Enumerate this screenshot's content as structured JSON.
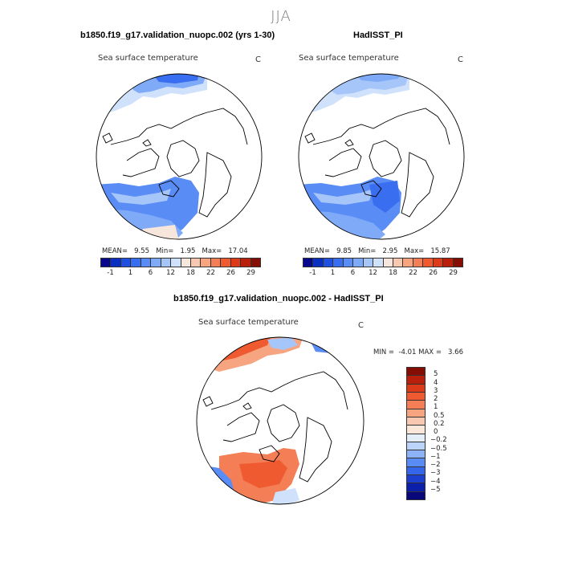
{
  "season": "JJA",
  "panels": [
    {
      "title": "b1850.f19_g17.validation_nuopc.002 (yrs 1-30)",
      "subtitle": "Sea surface temperature",
      "units": "C",
      "mean_label": "MEAN=",
      "mean": "9.55",
      "min_label": "Min=",
      "min": "1.95",
      "max_label": "Max=",
      "max": "17.04"
    },
    {
      "title": "HadISST_PI",
      "subtitle": "Sea surface temperature",
      "units": "C",
      "mean_label": "MEAN=",
      "mean": "9.85",
      "min_label": "Min=",
      "min": "2.95",
      "max_label": "Max=",
      "max": "15.87"
    }
  ],
  "abs_colorbar": {
    "tick_labels": [
      "-1",
      "1",
      "6",
      "12",
      "18",
      "22",
      "26",
      "29"
    ],
    "colors": [
      "#08088c",
      "#0b2fbe",
      "#1f50e0",
      "#3a6ef0",
      "#5a8cf5",
      "#7faaf8",
      "#a6c6fa",
      "#cfe1fb",
      "#f6e6dc",
      "#f9c8b0",
      "#f7a481",
      "#f47e55",
      "#ef5a30",
      "#dc3a18",
      "#b8200c",
      "#850d04"
    ]
  },
  "diff_panel": {
    "title": "b1850.f19_g17.validation_nuopc.002 - HadISST_PI",
    "subtitle": "Sea surface temperature",
    "units": "C",
    "min_label": "MIN =",
    "min": "-4.01",
    "max_label": "MAX =",
    "max": "3.66"
  },
  "diff_colorbar": {
    "labels": [
      "5",
      "4",
      "3",
      "2",
      "1",
      "0.5",
      "0.2",
      "0",
      "−0.2",
      "−0.5",
      "−1",
      "−2",
      "−3",
      "−4",
      "−5"
    ],
    "colors": [
      "#850d04",
      "#b8200c",
      "#dc3a18",
      "#ef5a30",
      "#f47e55",
      "#f7a481",
      "#f9c8b0",
      "#fbe6da",
      "#e4eefb",
      "#bdd4fa",
      "#8db2f7",
      "#5a8cf5",
      "#3565e8",
      "#1c3fd0",
      "#0b1fa8",
      "#08087a"
    ]
  },
  "colors": {
    "land": "#ffffff",
    "warm_anom": "#ef5a30",
    "cool_anom": "#3a6ef0"
  }
}
